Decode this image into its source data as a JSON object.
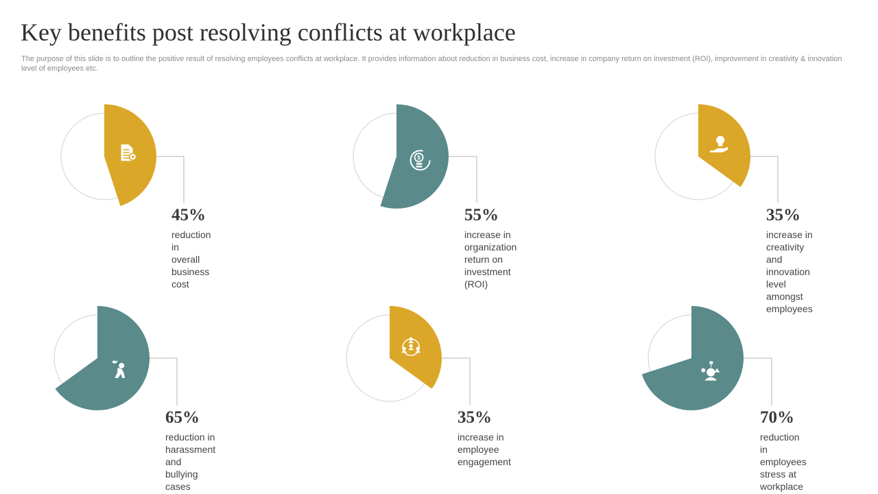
{
  "title": "Key benefits post resolving conflicts at workplace",
  "subtitle": "The purpose of this slide is to outline the positive result of resolving employees conflicts at workplace. It provides information about reduction in business cost, increase in company return on investment (ROI), improvement in creativity & innovation level of employees etc.",
  "colors": {
    "gold": "#DBA728",
    "teal": "#5A8A8A",
    "ring": "#d0d0d0",
    "leader": "#b5b5b5"
  },
  "chart_data": [
    {
      "type": "pie",
      "value": 45,
      "label": "45%",
      "description": "reduction in\noverall business cost",
      "color": "gold",
      "icon": "document-settings-icon"
    },
    {
      "type": "pie",
      "value": 55,
      "label": "55%",
      "description": "increase in organization\nreturn on investment (ROI)",
      "color": "teal",
      "icon": "coin-refresh-icon"
    },
    {
      "type": "pie",
      "value": 35,
      "label": "35%",
      "description": "increase in creativity\nand innovation level\namongst employees",
      "color": "gold",
      "icon": "lightbulb-hand-icon"
    },
    {
      "type": "pie",
      "value": 65,
      "label": "65%",
      "description": "reduction in harassment\nand bullying cases",
      "color": "teal",
      "icon": "distressed-person-icon"
    },
    {
      "type": "pie",
      "value": 35,
      "label": "35%",
      "description": "increase in\nemployee engagement",
      "color": "gold",
      "icon": "team-network-icon"
    },
    {
      "type": "pie",
      "value": 70,
      "label": "70%",
      "description": "reduction in employees\nstress at workplace",
      "color": "teal",
      "icon": "stressed-head-icon"
    }
  ]
}
